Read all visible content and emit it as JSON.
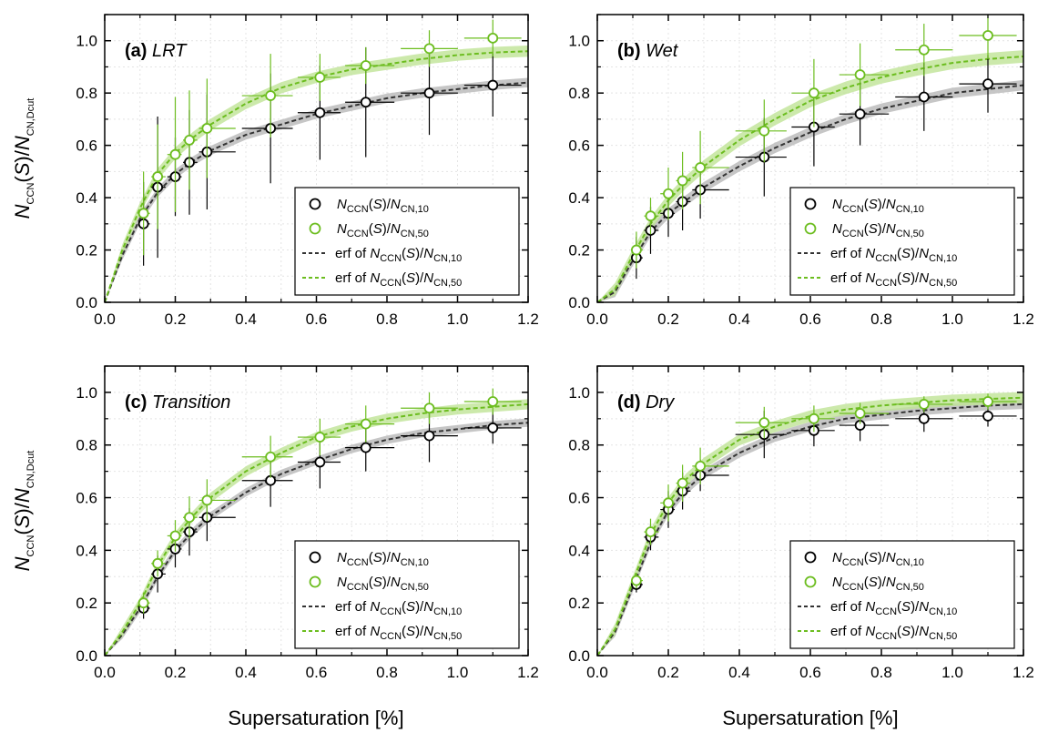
{
  "figure": {
    "y_axis_title": {
      "main": "N",
      "sub1": "CCN",
      "mid": "(S)/N",
      "sub2": "CN,Dcut"
    },
    "x_axis_title": "Supersaturation [%]",
    "colors": {
      "n10": "#000000",
      "n50": "#6cbd1f",
      "band_n10": "#b8b8b8",
      "band_n50": "#bfe496",
      "fit_n10": "#333333",
      "fit_n50": "#6cbd1f"
    }
  },
  "legend": [
    {
      "kind": "marker",
      "series": "n10",
      "prefix": "",
      "sub_den": "CN,10"
    },
    {
      "kind": "marker",
      "series": "n50",
      "prefix": "",
      "sub_den": "CN,50"
    },
    {
      "kind": "line",
      "series": "n10",
      "prefix": "erf of",
      "sub_den": "CN,10"
    },
    {
      "kind": "line",
      "series": "n50",
      "prefix": "erf of",
      "sub_den": "CN,50"
    }
  ],
  "chart_data": [
    {
      "type": "scatter",
      "panel": "(a)",
      "name": "LRT",
      "xlim": [
        0,
        1.2
      ],
      "ylim": [
        0,
        1.1
      ],
      "xticks": [
        "0.0",
        "0.2",
        "0.4",
        "0.6",
        "0.8",
        "1.0",
        "1.2"
      ],
      "yticks": [
        "0.0",
        "0.2",
        "0.4",
        "0.6",
        "0.8",
        "1.0"
      ],
      "series": [
        {
          "name": "NCCN(S)/NCN,10",
          "x": [
            0.11,
            0.15,
            0.2,
            0.24,
            0.29,
            0.47,
            0.61,
            0.74,
            0.92,
            1.1
          ],
          "y": [
            0.3,
            0.44,
            0.48,
            0.535,
            0.575,
            0.665,
            0.725,
            0.765,
            0.8,
            0.83
          ],
          "yerr": [
            0.16,
            0.27,
            0.15,
            0.2,
            0.22,
            0.21,
            0.18,
            0.21,
            0.16,
            0.12
          ]
        },
        {
          "name": "NCCN(S)/NCN,50",
          "x": [
            0.11,
            0.15,
            0.2,
            0.24,
            0.29,
            0.47,
            0.61,
            0.74,
            0.92,
            1.1
          ],
          "y": [
            0.34,
            0.48,
            0.565,
            0.62,
            0.665,
            0.79,
            0.86,
            0.905,
            0.97,
            1.01
          ],
          "yerr": [
            0.16,
            0.2,
            0.22,
            0.19,
            0.19,
            0.16,
            0.09,
            0.07,
            0.07,
            0.07
          ]
        }
      ],
      "fits": [
        {
          "series": "n10",
          "x": [
            0,
            0.05,
            0.1,
            0.15,
            0.2,
            0.25,
            0.3,
            0.4,
            0.5,
            0.6,
            0.7,
            0.8,
            0.9,
            1.0,
            1.1,
            1.2
          ],
          "y": [
            0,
            0.18,
            0.32,
            0.42,
            0.49,
            0.54,
            0.58,
            0.64,
            0.68,
            0.72,
            0.75,
            0.78,
            0.8,
            0.815,
            0.83,
            0.84
          ]
        },
        {
          "series": "n50",
          "x": [
            0,
            0.05,
            0.1,
            0.15,
            0.2,
            0.25,
            0.3,
            0.4,
            0.5,
            0.6,
            0.7,
            0.8,
            0.9,
            1.0,
            1.1,
            1.2
          ],
          "y": [
            0,
            0.2,
            0.36,
            0.49,
            0.57,
            0.63,
            0.68,
            0.76,
            0.82,
            0.86,
            0.89,
            0.91,
            0.93,
            0.945,
            0.955,
            0.96
          ]
        }
      ]
    },
    {
      "type": "scatter",
      "panel": "(b)",
      "name": "Wet",
      "xlim": [
        0,
        1.2
      ],
      "ylim": [
        0,
        1.1
      ],
      "xticks": [
        "0.0",
        "0.2",
        "0.4",
        "0.6",
        "0.8",
        "1.0",
        "1.2"
      ],
      "yticks": [
        "0.0",
        "0.2",
        "0.4",
        "0.6",
        "0.8",
        "1.0"
      ],
      "series": [
        {
          "name": "NCCN(S)/NCN,10",
          "x": [
            0.11,
            0.15,
            0.2,
            0.24,
            0.29,
            0.47,
            0.61,
            0.74,
            0.92,
            1.1
          ],
          "y": [
            0.17,
            0.275,
            0.34,
            0.385,
            0.43,
            0.555,
            0.67,
            0.72,
            0.785,
            0.835
          ],
          "yerr": [
            0.08,
            0.09,
            0.09,
            0.11,
            0.11,
            0.15,
            0.15,
            0.12,
            0.13,
            0.11
          ]
        },
        {
          "name": "NCCN(S)/NCN,50",
          "x": [
            0.11,
            0.15,
            0.2,
            0.24,
            0.29,
            0.47,
            0.61,
            0.74,
            0.92,
            1.1
          ],
          "y": [
            0.2,
            0.33,
            0.415,
            0.465,
            0.515,
            0.655,
            0.8,
            0.87,
            0.965,
            1.02
          ],
          "yerr": [
            0.07,
            0.07,
            0.1,
            0.11,
            0.14,
            0.12,
            0.13,
            0.12,
            0.1,
            0.09
          ]
        }
      ],
      "fits": [
        {
          "series": "n10",
          "x": [
            0,
            0.05,
            0.1,
            0.15,
            0.2,
            0.25,
            0.3,
            0.4,
            0.5,
            0.6,
            0.7,
            0.8,
            0.9,
            1.0,
            1.1,
            1.2
          ],
          "y": [
            0,
            0.04,
            0.16,
            0.27,
            0.34,
            0.39,
            0.44,
            0.52,
            0.59,
            0.65,
            0.7,
            0.74,
            0.77,
            0.8,
            0.815,
            0.83
          ]
        },
        {
          "series": "n50",
          "x": [
            0,
            0.05,
            0.1,
            0.15,
            0.2,
            0.25,
            0.3,
            0.4,
            0.5,
            0.6,
            0.7,
            0.8,
            0.9,
            1.0,
            1.1,
            1.2
          ],
          "y": [
            0,
            0.05,
            0.18,
            0.3,
            0.39,
            0.46,
            0.52,
            0.62,
            0.7,
            0.77,
            0.82,
            0.86,
            0.89,
            0.915,
            0.93,
            0.94
          ]
        }
      ]
    },
    {
      "type": "scatter",
      "panel": "(c)",
      "name": "Transition",
      "xlim": [
        0,
        1.2
      ],
      "ylim": [
        0,
        1.1
      ],
      "xticks": [
        "0.0",
        "0.2",
        "0.4",
        "0.6",
        "0.8",
        "1.0",
        "1.2"
      ],
      "yticks": [
        "0.0",
        "0.2",
        "0.4",
        "0.6",
        "0.8",
        "1.0"
      ],
      "series": [
        {
          "name": "NCCN(S)/NCN,10",
          "x": [
            0.11,
            0.15,
            0.2,
            0.24,
            0.29,
            0.47,
            0.61,
            0.74,
            0.92,
            1.1
          ],
          "y": [
            0.18,
            0.31,
            0.405,
            0.47,
            0.525,
            0.665,
            0.735,
            0.79,
            0.835,
            0.865
          ],
          "yerr": [
            0.04,
            0.07,
            0.07,
            0.09,
            0.09,
            0.1,
            0.1,
            0.09,
            0.1,
            0.06
          ]
        },
        {
          "name": "NCCN(S)/NCN,50",
          "x": [
            0.11,
            0.15,
            0.2,
            0.24,
            0.29,
            0.47,
            0.61,
            0.74,
            0.92,
            1.1
          ],
          "y": [
            0.2,
            0.35,
            0.455,
            0.525,
            0.59,
            0.755,
            0.83,
            0.88,
            0.94,
            0.965
          ],
          "yerr": [
            0.04,
            0.05,
            0.06,
            0.08,
            0.08,
            0.08,
            0.07,
            0.07,
            0.06,
            0.05
          ]
        }
      ],
      "fits": [
        {
          "series": "n10",
          "x": [
            0,
            0.05,
            0.1,
            0.15,
            0.2,
            0.25,
            0.3,
            0.4,
            0.5,
            0.6,
            0.7,
            0.8,
            0.9,
            1.0,
            1.1,
            1.2
          ],
          "y": [
            0,
            0.08,
            0.18,
            0.3,
            0.4,
            0.47,
            0.53,
            0.62,
            0.69,
            0.74,
            0.785,
            0.82,
            0.845,
            0.86,
            0.875,
            0.885
          ]
        },
        {
          "series": "n50",
          "x": [
            0,
            0.05,
            0.1,
            0.15,
            0.2,
            0.25,
            0.3,
            0.4,
            0.5,
            0.6,
            0.7,
            0.8,
            0.9,
            1.0,
            1.1,
            1.2
          ],
          "y": [
            0,
            0.09,
            0.2,
            0.34,
            0.45,
            0.53,
            0.6,
            0.7,
            0.77,
            0.83,
            0.87,
            0.9,
            0.92,
            0.935,
            0.945,
            0.955
          ]
        }
      ]
    },
    {
      "type": "scatter",
      "panel": "(d)",
      "name": "Dry",
      "xlim": [
        0,
        1.2
      ],
      "ylim": [
        0,
        1.1
      ],
      "xticks": [
        "0.0",
        "0.2",
        "0.4",
        "0.6",
        "0.8",
        "1.0",
        "1.2"
      ],
      "yticks": [
        "0.0",
        "0.2",
        "0.4",
        "0.6",
        "0.8",
        "1.0"
      ],
      "series": [
        {
          "name": "NCCN(S)/NCN,10",
          "x": [
            0.11,
            0.15,
            0.2,
            0.24,
            0.29,
            0.47,
            0.61,
            0.74,
            0.92,
            1.1
          ],
          "y": [
            0.27,
            0.45,
            0.555,
            0.625,
            0.685,
            0.84,
            0.855,
            0.875,
            0.9,
            0.91
          ],
          "yerr": [
            0.03,
            0.05,
            0.07,
            0.07,
            0.06,
            0.09,
            0.06,
            0.06,
            0.05,
            0.04
          ]
        },
        {
          "name": "NCCN(S)/NCN,50",
          "x": [
            0.11,
            0.15,
            0.2,
            0.24,
            0.29,
            0.47,
            0.61,
            0.74,
            0.92,
            1.1
          ],
          "y": [
            0.285,
            0.47,
            0.58,
            0.655,
            0.72,
            0.885,
            0.9,
            0.92,
            0.955,
            0.965
          ],
          "yerr": [
            0.03,
            0.05,
            0.07,
            0.07,
            0.07,
            0.06,
            0.05,
            0.04,
            0.03,
            0.03
          ]
        }
      ],
      "fits": [
        {
          "series": "n10",
          "x": [
            0,
            0.05,
            0.1,
            0.15,
            0.2,
            0.25,
            0.3,
            0.4,
            0.5,
            0.6,
            0.7,
            0.8,
            0.9,
            1.0,
            1.1,
            1.2
          ],
          "y": [
            0,
            0.09,
            0.26,
            0.43,
            0.55,
            0.63,
            0.69,
            0.77,
            0.83,
            0.87,
            0.9,
            0.915,
            0.93,
            0.94,
            0.95,
            0.955
          ]
        },
        {
          "series": "n50",
          "x": [
            0,
            0.05,
            0.1,
            0.15,
            0.2,
            0.25,
            0.3,
            0.4,
            0.5,
            0.6,
            0.7,
            0.8,
            0.9,
            1.0,
            1.1,
            1.2
          ],
          "y": [
            0,
            0.1,
            0.28,
            0.46,
            0.58,
            0.67,
            0.73,
            0.82,
            0.87,
            0.91,
            0.935,
            0.95,
            0.96,
            0.97,
            0.975,
            0.98
          ]
        }
      ]
    }
  ]
}
